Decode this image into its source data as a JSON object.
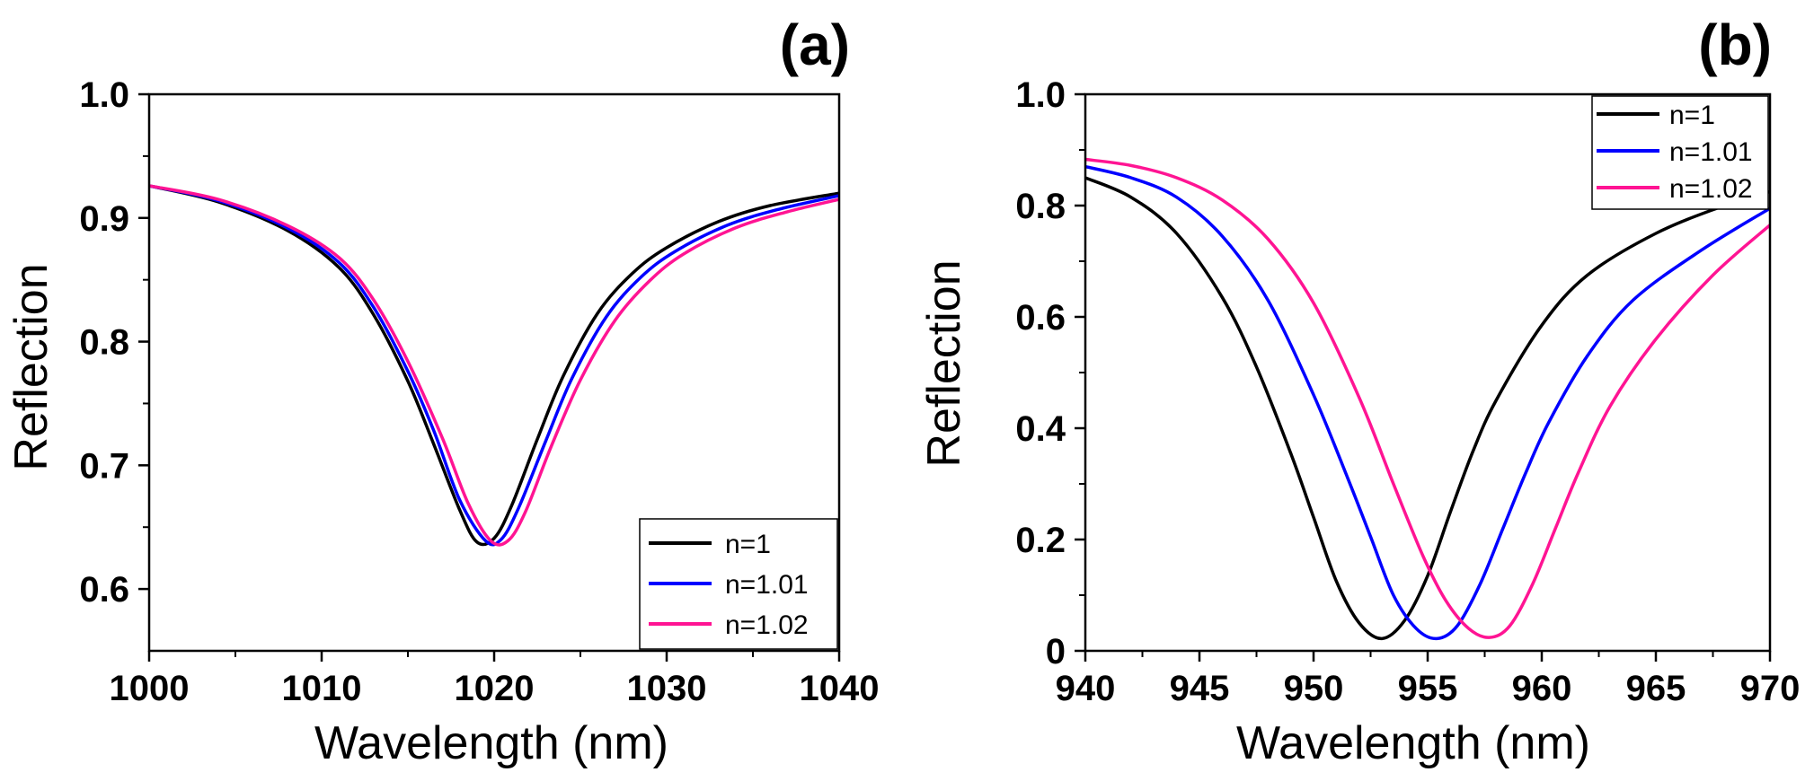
{
  "chart_data": [
    {
      "panel_label": "(a)",
      "type": "line",
      "xlabel": "Wavelength (nm)",
      "ylabel": "Reflection",
      "xlim": [
        1000,
        1040
      ],
      "ylim": [
        0.55,
        1.0
      ],
      "xticks": [
        1000,
        1010,
        1020,
        1030,
        1040
      ],
      "xtick_labels": [
        "1000",
        "1010",
        "1020",
        "1030",
        "1040"
      ],
      "yticks": [
        0.6,
        0.7,
        0.8,
        0.9,
        1.0
      ],
      "ytick_labels": [
        "0.6",
        "0.7",
        "0.8",
        "0.9",
        "1.0"
      ],
      "legend_position": "bottom-right",
      "grid": false,
      "series": [
        {
          "name": "n=1",
          "color": "#000000",
          "x": [
            1000,
            1004,
            1008,
            1011,
            1013,
            1015,
            1016.5,
            1018,
            1019,
            1020,
            1021,
            1022.5,
            1024,
            1026,
            1028,
            1030,
            1033,
            1036,
            1040
          ],
          "y": [
            0.926,
            0.913,
            0.89,
            0.86,
            0.822,
            0.768,
            0.717,
            0.664,
            0.638,
            0.641,
            0.667,
            0.721,
            0.772,
            0.823,
            0.855,
            0.876,
            0.897,
            0.91,
            0.92
          ]
        },
        {
          "name": "n=1.01",
          "color": "#0000ff",
          "x": [
            1000,
            1004,
            1008,
            1011,
            1013,
            1015,
            1016.5,
            1018,
            1019.5,
            1020.4,
            1021.4,
            1023,
            1024.5,
            1026.5,
            1028.5,
            1030.5,
            1033.5,
            1036.5,
            1040
          ],
          "y": [
            0.926,
            0.914,
            0.892,
            0.864,
            0.828,
            0.776,
            0.728,
            0.672,
            0.639,
            0.64,
            0.665,
            0.72,
            0.77,
            0.82,
            0.852,
            0.873,
            0.894,
            0.907,
            0.918
          ]
        },
        {
          "name": "n=1.02",
          "color": "#ff1493",
          "x": [
            1000,
            1004,
            1008,
            1011,
            1013,
            1015,
            1017,
            1018.5,
            1019.8,
            1020.8,
            1021.8,
            1023.3,
            1025,
            1027,
            1029,
            1031,
            1034,
            1037,
            1040
          ],
          "y": [
            0.926,
            0.915,
            0.894,
            0.868,
            0.834,
            0.784,
            0.722,
            0.669,
            0.639,
            0.639,
            0.662,
            0.715,
            0.769,
            0.817,
            0.849,
            0.871,
            0.892,
            0.905,
            0.915
          ]
        }
      ]
    },
    {
      "panel_label": "(b)",
      "type": "line",
      "xlabel": "Wavelength (nm)",
      "ylabel": "Reflection",
      "xlim": [
        940,
        970
      ],
      "ylim": [
        0,
        1.0
      ],
      "xticks": [
        940,
        945,
        950,
        955,
        960,
        965,
        970
      ],
      "xtick_labels": [
        "940",
        "945",
        "950",
        "955",
        "960",
        "965",
        "970"
      ],
      "yticks": [
        0,
        0.2,
        0.4,
        0.6,
        0.8,
        1.0
      ],
      "ytick_labels": [
        "0",
        "0.2",
        "0.4",
        "0.6",
        "0.8",
        "1.0"
      ],
      "legend_position": "top-right",
      "grid": false,
      "series": [
        {
          "name": "n=1",
          "color": "#000000",
          "x": [
            940,
            942,
            944,
            946,
            947.5,
            949,
            950,
            951,
            952,
            953,
            954,
            955,
            956,
            957,
            958,
            960,
            962,
            965,
            968,
            970
          ],
          "y": [
            0.85,
            0.815,
            0.75,
            0.635,
            0.51,
            0.355,
            0.24,
            0.125,
            0.05,
            0.022,
            0.055,
            0.135,
            0.25,
            0.36,
            0.45,
            0.585,
            0.675,
            0.75,
            0.8,
            0.825
          ]
        },
        {
          "name": "n=1.01",
          "color": "#0000ff",
          "x": [
            940,
            942,
            944,
            946,
            948,
            950,
            951.5,
            952.5,
            953.5,
            954.5,
            955.4,
            956.3,
            957.3,
            958.3,
            959.3,
            960.3,
            962,
            964,
            967,
            970
          ],
          "y": [
            0.87,
            0.85,
            0.815,
            0.745,
            0.63,
            0.46,
            0.31,
            0.205,
            0.1,
            0.04,
            0.022,
            0.045,
            0.12,
            0.22,
            0.32,
            0.41,
            0.53,
            0.63,
            0.72,
            0.795
          ]
        },
        {
          "name": "n=1.02",
          "color": "#ff1493",
          "x": [
            940,
            942,
            944,
            946,
            948,
            950,
            952,
            953.5,
            954.8,
            955.8,
            956.8,
            957.7,
            958.6,
            959.6,
            960.6,
            961.6,
            963,
            965,
            967.5,
            970
          ],
          "y": [
            0.883,
            0.872,
            0.85,
            0.81,
            0.74,
            0.625,
            0.455,
            0.3,
            0.17,
            0.09,
            0.04,
            0.024,
            0.045,
            0.12,
            0.22,
            0.32,
            0.44,
            0.56,
            0.675,
            0.765
          ]
        }
      ]
    }
  ]
}
